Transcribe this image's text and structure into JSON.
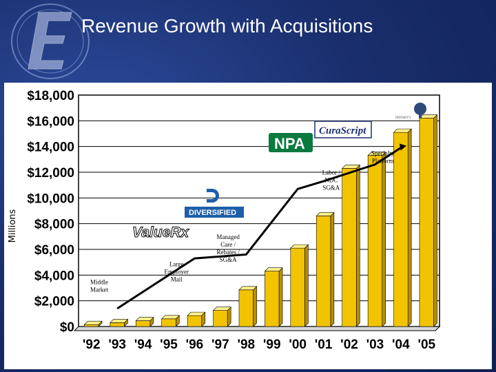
{
  "slide": {
    "title": "Revenue Growth with Acquisitions"
  },
  "colors": {
    "background": "#1a2f6e",
    "bar": "#f2c400",
    "bar_top": "#fff08a",
    "bar_side": "#b88f00",
    "line": "#000000"
  },
  "brands": {
    "value_rx": "ValueRx",
    "diversified": "DIVERSIFIED",
    "npa": "NPA",
    "curascript": "CuraScript",
    "priority": "PRIORITY"
  },
  "chart_data": {
    "type": "bar",
    "ylabel": "Millions",
    "ylim": [
      0,
      18000
    ],
    "yticks": [
      0,
      2000,
      4000,
      6000,
      8000,
      10000,
      12000,
      14000,
      16000,
      18000
    ],
    "ytick_labels": [
      "$0",
      "$2,000",
      "$4,000",
      "$6,000",
      "$8,000",
      "$10,000",
      "$12,000",
      "$14,000",
      "$16,000",
      "$18,000"
    ],
    "grid": true,
    "categories": [
      "'92",
      "'93",
      "'94",
      "'95",
      "'96",
      "'97",
      "'98",
      "'99",
      "'00",
      "'01",
      "'02",
      "'03",
      "'04",
      "'05"
    ],
    "series": [
      {
        "values": [
          150,
          300,
          450,
          600,
          850,
          1250,
          2850,
          4300,
          6100,
          8600,
          12300,
          13300,
          15100,
          16200
        ]
      }
    ],
    "trend_line": [
      {
        "category": "'93",
        "y": 1400
      },
      {
        "category": "'96",
        "y": 5300
      },
      {
        "category": "'98",
        "y": 5600
      },
      {
        "category": "'00",
        "y": 10700
      },
      {
        "category": "'01",
        "y": 11300
      },
      {
        "category": "'03",
        "y": 12600
      },
      {
        "category": "'04",
        "y": 13900
      }
    ],
    "annotations": [
      {
        "text": "Middle\nMarket",
        "category": "'92",
        "y": 3300
      },
      {
        "text": "Large\nEmployer\nMail",
        "category": "'95",
        "y": 4700
      },
      {
        "text": "Managed\nCare /\nRebates /\nSG&A",
        "category": "'97",
        "y": 6800
      },
      {
        "text": "Labor /\nNDC\nSG&A",
        "category": "'01",
        "y": 11800
      },
      {
        "text": "Specialty\nPlatform",
        "category": "'03",
        "y": 13300
      }
    ]
  }
}
